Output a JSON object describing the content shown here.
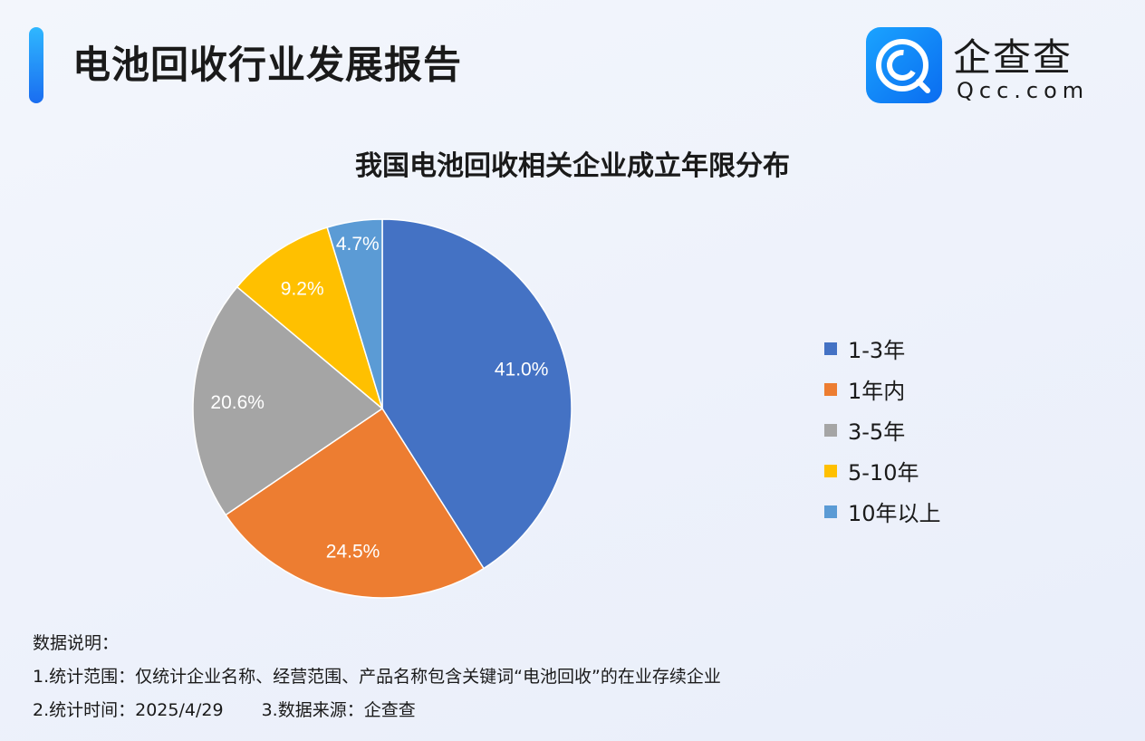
{
  "header": {
    "title": "电池回收行业发展报告"
  },
  "logo": {
    "cn": "企查查",
    "en": "Qcc.com",
    "icon": "qcc-logo-icon"
  },
  "chart_data": {
    "type": "pie",
    "title": "我国电池回收相关企业成立年限分布",
    "categories": [
      "1-3年",
      "1年内",
      "3-5年",
      "5-10年",
      "10年以上"
    ],
    "values": [
      41.0,
      24.5,
      20.6,
      9.2,
      4.7
    ],
    "labels": [
      "41.0%",
      "24.5%",
      "20.6%",
      "9.2%",
      "4.7%"
    ],
    "colors": [
      "#4472c4",
      "#ed7d31",
      "#a5a5a5",
      "#ffc000",
      "#5b9bd5"
    ],
    "start": "top",
    "direction": "clockwise",
    "legend": "right"
  },
  "notes": {
    "heading": "数据说明：",
    "line1": "1.统计范围：仅统计企业名称、经营范围、产品名称包含关键词“电池回收”的在业存续企业",
    "time": "2.统计时间：2025/4/29",
    "source": "3.数据来源：企查查"
  }
}
